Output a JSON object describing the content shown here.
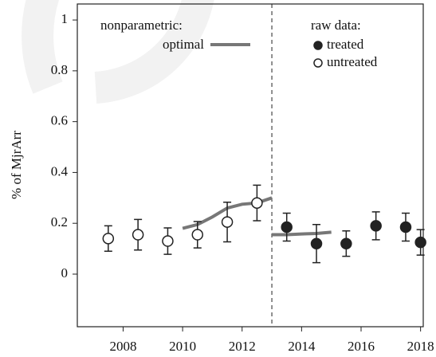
{
  "chart_data": {
    "type": "scatter",
    "y_label": "% of MjrArr",
    "xlim": [
      2006.46,
      2018.09
    ],
    "ylim": [
      -0.207,
      1.063
    ],
    "xticks": [
      2008,
      2010,
      2012,
      2014,
      2016,
      2018
    ],
    "yticks": [
      0,
      0.2,
      0.4,
      0.6,
      0.8,
      1
    ],
    "vline": 2013,
    "legend_titles": [
      "nonparametric:",
      "raw data:"
    ],
    "lines": [
      {
        "name": "optimal",
        "color": "#777777",
        "x": [
          2010,
          2010.5,
          2011,
          2011.5,
          2012,
          2012.5,
          2013,
          null,
          2013,
          2013.5,
          2014,
          2014.5,
          2015
        ],
        "values": [
          0.18,
          0.195,
          0.225,
          0.26,
          0.275,
          0.28,
          0.3,
          null,
          0.155,
          0.155,
          0.158,
          0.16,
          0.165
        ]
      }
    ],
    "series": [
      {
        "name": "treated",
        "color": "#222222",
        "x": [
          2013.5,
          2014.5,
          2015.5,
          2016.5,
          2017.5,
          2018
        ],
        "values": [
          0.185,
          0.12,
          0.12,
          0.19,
          0.185,
          0.125
        ],
        "errors": [
          0.055,
          0.075,
          0.05,
          0.055,
          0.055,
          0.05
        ]
      },
      {
        "name": "untreated",
        "color": "#ffffff",
        "x": [
          2007.5,
          2008.5,
          2009.5,
          2010.5,
          2011.5,
          2012.5
        ],
        "values": [
          0.14,
          0.155,
          0.13,
          0.155,
          0.205,
          0.28
        ],
        "errors": [
          0.05,
          0.06,
          0.052,
          0.052,
          0.078,
          0.07
        ]
      }
    ]
  }
}
